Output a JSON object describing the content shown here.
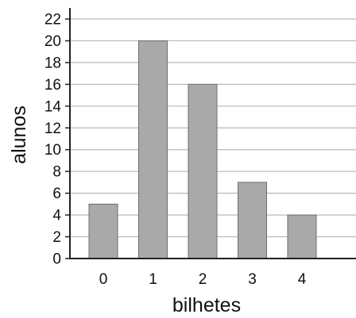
{
  "chart_data": {
    "type": "bar",
    "categories": [
      "0",
      "1",
      "2",
      "3",
      "4"
    ],
    "values": [
      5,
      20,
      16,
      7,
      4
    ],
    "title": "",
    "xlabel": "bilhetes",
    "ylabel": "alunos",
    "ylim": [
      0,
      22
    ],
    "yticks": [
      "0",
      "2",
      "4",
      "6",
      "8",
      "10",
      "12",
      "14",
      "16",
      "18",
      "20",
      "22"
    ],
    "grid": true,
    "colors": {
      "bar_fill": "#a9a9a9",
      "bar_stroke": "#6e6e6e",
      "grid": "#b8b8b8",
      "axis": "#222222"
    }
  }
}
